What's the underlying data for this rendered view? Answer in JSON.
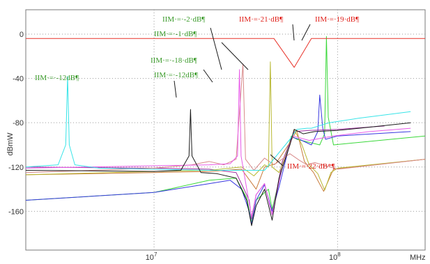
{
  "chart_data": {
    "type": "line",
    "xlabel": "MHz",
    "ylabel": "dBmW",
    "xscale": "log",
    "xlim": [
      2000000,
      300000000
    ],
    "ylim": [
      -195,
      22
    ],
    "grid": true,
    "x_ticks": [
      {
        "value": 10000000,
        "base": "10",
        "exp": "7"
      },
      {
        "value": 100000000,
        "base": "10",
        "exp": "8"
      }
    ],
    "y_ticks": [
      0,
      -40,
      -80,
      -120,
      -160
    ],
    "colors": {
      "red": "#e8332a",
      "cyan": "#38e4e8",
      "black": "#1a1a1a",
      "magenta": "#e85ae8",
      "olive": "#b8b832",
      "green": "#3ad83a",
      "blue": "#3838e0",
      "purple": "#a02ea0",
      "brown": "#c87a3a",
      "pink": "#d88a8a"
    },
    "annotation_colors": {
      "green": "#3a9a2a",
      "red": "#e0201a"
    },
    "series": [
      {
        "color": "red",
        "points": [
          [
            2000000,
            -4
          ],
          [
            45000000,
            -4
          ],
          [
            58000000,
            -30
          ],
          [
            72000000,
            -4
          ],
          [
            300000000,
            -4
          ]
        ]
      },
      {
        "color": "cyan",
        "points": [
          [
            2000000,
            -120
          ],
          [
            3000000,
            -118
          ],
          [
            3300000,
            -100
          ],
          [
            3380000,
            -38
          ],
          [
            3450000,
            -100
          ],
          [
            3700000,
            -118
          ],
          [
            5000000,
            -121
          ],
          [
            20000000,
            -123
          ],
          [
            40000000,
            -123
          ],
          [
            55000000,
            -95
          ],
          [
            60000000,
            -86
          ],
          [
            68000000,
            -85
          ],
          [
            72000000,
            -85
          ],
          [
            90000000,
            -80
          ],
          [
            130000000,
            -76
          ],
          [
            250000000,
            -70
          ]
        ]
      },
      {
        "color": "black",
        "points": [
          [
            2000000,
            -123
          ],
          [
            10000000,
            -124
          ],
          [
            14000000,
            -123
          ],
          [
            15500000,
            -110
          ],
          [
            15800000,
            -68
          ],
          [
            16100000,
            -110
          ],
          [
            18000000,
            -125
          ],
          [
            22000000,
            -126
          ],
          [
            28000000,
            -130
          ],
          [
            32000000,
            -150
          ],
          [
            34000000,
            -173
          ],
          [
            36000000,
            -155
          ],
          [
            40000000,
            -140
          ],
          [
            44000000,
            -168
          ],
          [
            48000000,
            -130
          ],
          [
            55000000,
            -100
          ],
          [
            58000000,
            -86
          ],
          [
            65000000,
            -90
          ],
          [
            75000000,
            -88
          ],
          [
            100000000,
            -87
          ],
          [
            150000000,
            -84
          ],
          [
            250000000,
            -80
          ]
        ]
      },
      {
        "color": "magenta",
        "points": [
          [
            2000000,
            -121
          ],
          [
            20000000,
            -118
          ],
          [
            26000000,
            -117
          ],
          [
            28500000,
            -110
          ],
          [
            29200000,
            -32
          ],
          [
            29800000,
            -110
          ],
          [
            32000000,
            -140
          ],
          [
            34000000,
            -165
          ],
          [
            36000000,
            -145
          ],
          [
            40000000,
            -135
          ],
          [
            44000000,
            -163
          ],
          [
            50000000,
            -120
          ],
          [
            57000000,
            -92
          ],
          [
            70000000,
            -96
          ],
          [
            95000000,
            -92
          ],
          [
            150000000,
            -88
          ],
          [
            250000000,
            -85
          ]
        ]
      },
      {
        "color": "pink",
        "points": [
          [
            2000000,
            -125
          ],
          [
            10000000,
            -121
          ],
          [
            16000000,
            -118
          ],
          [
            20000000,
            -115
          ],
          [
            24000000,
            -118
          ],
          [
            28000000,
            -113
          ],
          [
            30500000,
            -27
          ],
          [
            31500000,
            -113
          ],
          [
            35000000,
            -123
          ],
          [
            40000000,
            -112
          ],
          [
            45000000,
            -118
          ],
          [
            55000000,
            -108
          ],
          [
            62000000,
            -114
          ],
          [
            68000000,
            -118
          ],
          [
            75000000,
            -116
          ],
          [
            100000000,
            -122
          ],
          [
            300000000,
            -113
          ]
        ]
      },
      {
        "color": "olive",
        "points": [
          [
            2000000,
            -127
          ],
          [
            10000000,
            -124
          ],
          [
            20000000,
            -123
          ],
          [
            30000000,
            -120
          ],
          [
            35000000,
            -128
          ],
          [
            40000000,
            -118
          ],
          [
            42000000,
            -120
          ],
          [
            43000000,
            -25
          ],
          [
            44000000,
            -120
          ],
          [
            48000000,
            -125
          ],
          [
            55000000,
            -100
          ],
          [
            58000000,
            -86
          ],
          [
            64000000,
            -100
          ],
          [
            70000000,
            -118
          ],
          [
            78000000,
            -126
          ],
          [
            85000000,
            -141
          ],
          [
            92000000,
            -125
          ],
          [
            100000000,
            -121
          ],
          [
            300000000,
            -113
          ]
        ]
      },
      {
        "color": "brown",
        "points": [
          [
            2000000,
            -127
          ],
          [
            10000000,
            -125
          ],
          [
            20000000,
            -124
          ],
          [
            30000000,
            -122
          ],
          [
            36000000,
            -140
          ],
          [
            40000000,
            -120
          ],
          [
            46000000,
            -117
          ],
          [
            55000000,
            -98
          ],
          [
            60000000,
            -87
          ],
          [
            66000000,
            -115
          ],
          [
            74000000,
            -125
          ],
          [
            84000000,
            -142
          ],
          [
            95000000,
            -122
          ],
          [
            300000000,
            -113
          ]
        ]
      },
      {
        "color": "green",
        "points": [
          [
            2000000,
            -150
          ],
          [
            10000000,
            -143
          ],
          [
            20000000,
            -132
          ],
          [
            28000000,
            -130
          ],
          [
            32000000,
            -148
          ],
          [
            34000000,
            -170
          ],
          [
            36000000,
            -150
          ],
          [
            42000000,
            -140
          ],
          [
            44000000,
            -158
          ],
          [
            50000000,
            -120
          ],
          [
            56000000,
            -92
          ],
          [
            60000000,
            -95
          ],
          [
            80000000,
            -100
          ],
          [
            85000000,
            -90
          ],
          [
            87000000,
            -2
          ],
          [
            89000000,
            -75
          ],
          [
            95000000,
            -100
          ],
          [
            300000000,
            -92
          ]
        ]
      },
      {
        "color": "blue",
        "points": [
          [
            2000000,
            -150
          ],
          [
            10000000,
            -143
          ],
          [
            20000000,
            -135
          ],
          [
            26000000,
            -132
          ],
          [
            30000000,
            -140
          ],
          [
            33000000,
            -160
          ],
          [
            34000000,
            -172
          ],
          [
            36000000,
            -150
          ],
          [
            40000000,
            -136
          ],
          [
            44000000,
            -160
          ],
          [
            48000000,
            -138
          ],
          [
            56000000,
            -93
          ],
          [
            62000000,
            -95
          ],
          [
            72000000,
            -100
          ],
          [
            78000000,
            -88
          ],
          [
            80000000,
            -55
          ],
          [
            83000000,
            -85
          ],
          [
            86000000,
            -95
          ],
          [
            100000000,
            -92
          ],
          [
            250000000,
            -88
          ]
        ]
      },
      {
        "color": "purple",
        "points": [
          [
            2000000,
            -120
          ],
          [
            10000000,
            -121
          ],
          [
            20000000,
            -122
          ],
          [
            28000000,
            -125
          ],
          [
            33000000,
            -150
          ],
          [
            34000000,
            -167
          ],
          [
            36000000,
            -145
          ],
          [
            40000000,
            -135
          ],
          [
            44000000,
            -163
          ],
          [
            50000000,
            -115
          ],
          [
            58000000,
            -88
          ],
          [
            70000000,
            -87
          ],
          [
            100000000,
            -86
          ],
          [
            180000000,
            -83
          ]
        ]
      }
    ],
    "annotations": [
      {
        "text": "IIM·=·-12dB¶",
        "color": "green"
      },
      {
        "text": "IIM·=·-2·dB¶",
        "color": "green"
      },
      {
        "text": "IIM·=·-1·dB¶",
        "color": "green"
      },
      {
        "text": "IIM·=·-18·dB¶",
        "color": "green"
      },
      {
        "text": "IIM·=·-12dB¶",
        "color": "green"
      },
      {
        "text": "IIM·=·21·dB¶",
        "color": "red"
      },
      {
        "text": "IIM·=·19·dB¶",
        "color": "red"
      },
      {
        "text": "IIM·=·22·dB*¶",
        "color": "red"
      }
    ]
  }
}
